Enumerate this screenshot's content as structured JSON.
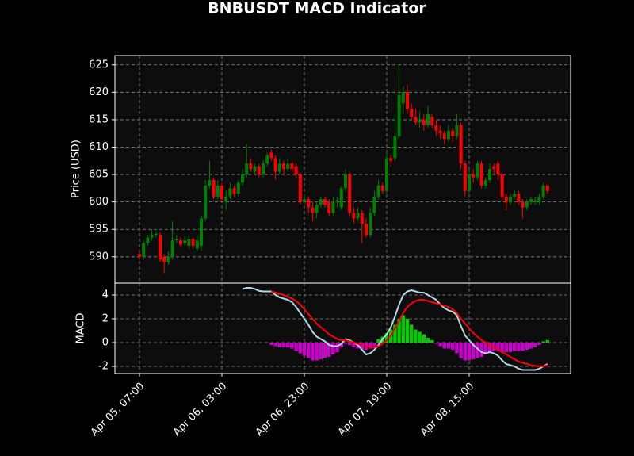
{
  "chart_data": [
    {
      "type": "candlestick",
      "title": "BNBUSDT MACD Indicator",
      "ylabel": "Price (USD)",
      "x": [
        "Apr 05, 07:00",
        "Apr 05, 08:00",
        "Apr 05, 09:00",
        "Apr 05, 10:00",
        "Apr 05, 11:00",
        "Apr 05, 12:00",
        "Apr 05, 13:00",
        "Apr 05, 14:00",
        "Apr 05, 15:00",
        "Apr 05, 16:00",
        "Apr 05, 17:00",
        "Apr 05, 18:00",
        "Apr 05, 19:00",
        "Apr 05, 20:00",
        "Apr 05, 21:00",
        "Apr 05, 22:00",
        "Apr 05, 23:00",
        "Apr 06, 00:00",
        "Apr 06, 01:00",
        "Apr 06, 02:00",
        "Apr 06, 03:00",
        "Apr 06, 04:00",
        "Apr 06, 05:00",
        "Apr 06, 06:00",
        "Apr 06, 07:00",
        "Apr 06, 08:00",
        "Apr 06, 09:00",
        "Apr 06, 10:00",
        "Apr 06, 11:00",
        "Apr 06, 12:00",
        "Apr 06, 13:00",
        "Apr 06, 14:00",
        "Apr 06, 15:00",
        "Apr 06, 16:00",
        "Apr 06, 17:00",
        "Apr 06, 18:00",
        "Apr 06, 19:00",
        "Apr 06, 20:00",
        "Apr 06, 21:00",
        "Apr 06, 22:00",
        "Apr 06, 23:00",
        "Apr 07, 00:00",
        "Apr 07, 01:00",
        "Apr 07, 02:00",
        "Apr 07, 03:00",
        "Apr 07, 04:00",
        "Apr 07, 05:00",
        "Apr 07, 06:00",
        "Apr 07, 07:00",
        "Apr 07, 08:00",
        "Apr 07, 09:00",
        "Apr 07, 10:00",
        "Apr 07, 11:00",
        "Apr 07, 12:00",
        "Apr 07, 13:00",
        "Apr 07, 14:00",
        "Apr 07, 15:00",
        "Apr 07, 16:00",
        "Apr 07, 17:00",
        "Apr 07, 18:00",
        "Apr 07, 19:00",
        "Apr 07, 20:00",
        "Apr 07, 21:00",
        "Apr 07, 22:00",
        "Apr 07, 23:00",
        "Apr 08, 00:00",
        "Apr 08, 01:00",
        "Apr 08, 02:00",
        "Apr 08, 03:00",
        "Apr 08, 04:00",
        "Apr 08, 05:00",
        "Apr 08, 06:00",
        "Apr 08, 07:00",
        "Apr 08, 08:00",
        "Apr 08, 09:00",
        "Apr 08, 10:00",
        "Apr 08, 11:00",
        "Apr 08, 12:00",
        "Apr 08, 13:00",
        "Apr 08, 14:00",
        "Apr 08, 15:00",
        "Apr 08, 16:00",
        "Apr 08, 17:00",
        "Apr 08, 18:00",
        "Apr 08, 19:00",
        "Apr 08, 20:00",
        "Apr 08, 21:00",
        "Apr 08, 22:00",
        "Apr 08, 23:00",
        "Apr 09, 00:00",
        "Apr 09, 01:00",
        "Apr 09, 02:00",
        "Apr 09, 03:00",
        "Apr 09, 04:00",
        "Apr 09, 05:00",
        "Apr 09, 06:00",
        "Apr 09, 07:00",
        "Apr 09, 08:00",
        "Apr 09, 09:00",
        "Apr 09, 10:00"
      ],
      "open": [
        590.5,
        590,
        592.5,
        593.5,
        594,
        594,
        590,
        589,
        590,
        593,
        593,
        592.5,
        592,
        593.2,
        591.5,
        592,
        597,
        603,
        604,
        601,
        603,
        600,
        601,
        602.5,
        601.5,
        603.5,
        605,
        607,
        605.5,
        606.5,
        605,
        607,
        609,
        608,
        605.5,
        607,
        606,
        607,
        606.5,
        605,
        600,
        600.5,
        599,
        598,
        599.5,
        600.5,
        600,
        598,
        600,
        599,
        602.5,
        605,
        598,
        597,
        598,
        596,
        594,
        598,
        601,
        603,
        602,
        608,
        608,
        612,
        618,
        620,
        617,
        615.5,
        614.5,
        615,
        614,
        615.5,
        614,
        613,
        612.5,
        611.5,
        613,
        612,
        614,
        607,
        602,
        605,
        604.5,
        607,
        603,
        604,
        606.5,
        607,
        605,
        601,
        600,
        601,
        601.5,
        600,
        599,
        600,
        600,
        600,
        601,
        603
      ],
      "high": [
        591,
        593,
        594,
        595,
        594.8,
        594.5,
        590.5,
        591,
        596.5,
        594,
        593.5,
        593.8,
        594,
        593.5,
        594,
        597.5,
        604,
        607.5,
        604.5,
        604,
        603.5,
        602,
        603.5,
        603,
        604,
        606,
        610.5,
        608,
        607,
        607,
        607.5,
        609,
        609.5,
        608.5,
        608,
        607.5,
        608,
        607.5,
        607,
        605.5,
        601.5,
        601,
        600,
        600,
        601,
        601,
        600.5,
        601,
        601,
        603,
        606,
        605.5,
        599,
        599,
        598.5,
        597,
        599,
        602,
        604,
        603.5,
        609,
        608.5,
        616,
        625,
        621,
        621.5,
        618,
        617,
        616.5,
        616,
        617.5,
        616,
        615,
        614,
        613,
        614,
        613.5,
        616,
        614.5,
        607.5,
        606,
        606,
        607.5,
        607.5,
        604.5,
        607,
        607,
        607.5,
        605.5,
        601.5,
        601.5,
        602,
        602,
        600.5,
        600.5,
        601,
        601,
        601.5,
        603.5,
        603.2
      ],
      "low": [
        589.5,
        589.5,
        592,
        593,
        593.5,
        589,
        587,
        588.5,
        589.5,
        592.5,
        591.8,
        592,
        591.5,
        591.5,
        591,
        591,
        596.5,
        602.5,
        600.5,
        600.5,
        600,
        598.5,
        600.5,
        601,
        601,
        603,
        604.5,
        605.5,
        605,
        604.5,
        604.5,
        606.5,
        607.5,
        604,
        605,
        605,
        605.5,
        605.5,
        604.5,
        599.5,
        599.5,
        598,
        596.5,
        597,
        599,
        599,
        597.5,
        597.5,
        599,
        598.5,
        602,
        597.5,
        596,
        596.5,
        592.5,
        593.5,
        593.5,
        597.5,
        600.5,
        601.5,
        601.5,
        606.5,
        607.5,
        611.5,
        616,
        616,
        615,
        614,
        613.5,
        613,
        613.5,
        613.5,
        612,
        611.5,
        610.5,
        611,
        611,
        611.5,
        606,
        601,
        601.5,
        603.5,
        604,
        602.5,
        602.5,
        603.5,
        605,
        604,
        600,
        598.5,
        599.5,
        600.5,
        599.5,
        597,
        598.5,
        599.5,
        599.5,
        599.5,
        600.5,
        601.5
      ],
      "close": [
        590,
        592.5,
        593.5,
        594,
        594.2,
        589.5,
        589,
        590,
        593,
        593.3,
        592.2,
        593,
        593.2,
        592,
        593,
        597,
        603,
        604,
        601,
        603,
        600.5,
        601,
        602.5,
        601.5,
        603.5,
        605,
        607,
        606,
        606.5,
        605,
        607,
        608.5,
        608,
        605.5,
        607,
        606,
        607,
        606,
        605,
        600,
        600.5,
        599,
        598,
        599.5,
        600.5,
        599.5,
        598,
        600,
        600.3,
        602.5,
        605,
        598,
        597,
        598,
        596,
        594,
        598,
        601,
        603,
        602,
        608,
        607.5,
        612,
        619.5,
        620,
        617,
        615.5,
        614.5,
        615,
        614,
        616,
        614,
        613,
        612.5,
        611.5,
        613,
        612,
        614,
        607,
        602,
        605,
        604.5,
        607,
        603,
        604,
        606,
        606,
        605,
        601,
        600,
        601,
        601.5,
        600,
        599,
        600,
        600.5,
        600.3,
        601,
        603,
        602
      ],
      "up_color": "#008000",
      "down_color": "#ff0000",
      "ylim": [
        585.2,
        626.7
      ],
      "yticks": [
        590,
        595,
        600,
        605,
        610,
        615,
        620,
        625
      ],
      "grid": true
    },
    {
      "type": "macd",
      "ylabel": "MACD",
      "ylim": [
        -2.6,
        5.0
      ],
      "yticks": [
        -2,
        0,
        2,
        4
      ],
      "grid": true,
      "xticks": [
        "Apr 05, 07:00",
        "Apr 06, 03:00",
        "Apr 06, 23:00",
        "Apr 07, 19:00",
        "Apr 08, 15:00"
      ],
      "series": [
        {
          "kind": "line",
          "color": "#add8e6",
          "values": [
            null,
            null,
            null,
            null,
            null,
            null,
            null,
            null,
            null,
            null,
            null,
            null,
            null,
            null,
            null,
            null,
            null,
            null,
            null,
            null,
            null,
            null,
            null,
            null,
            null,
            4.5,
            4.6,
            4.6,
            4.5,
            4.35,
            4.3,
            4.3,
            4.3,
            4.0,
            3.8,
            3.7,
            3.6,
            3.4,
            3.0,
            2.5,
            2.0,
            1.5,
            0.9,
            0.5,
            0.3,
            0.1,
            -0.2,
            -0.3,
            -0.3,
            -0.1,
            0.3,
            0.2,
            0.0,
            -0.2,
            -0.6,
            -1.0,
            -0.9,
            -0.6,
            -0.2,
            0.3,
            0.7,
            1.3,
            2.2,
            3.2,
            4.0,
            4.3,
            4.4,
            4.3,
            4.2,
            4.2,
            4.0,
            3.8,
            3.6,
            3.2,
            2.9,
            2.7,
            2.6,
            2.3,
            1.4,
            0.6,
            0.2,
            -0.2,
            -0.5,
            -0.8,
            -0.9,
            -0.8,
            -0.9,
            -1.1,
            -1.5,
            -1.8,
            -1.9,
            -2.0,
            -2.2,
            -2.3,
            -2.3,
            -2.3,
            -2.3,
            -2.2,
            -2.0,
            -1.8
          ]
        },
        {
          "kind": "line",
          "color": "#ff0000",
          "values": [
            null,
            null,
            null,
            null,
            null,
            null,
            null,
            null,
            null,
            null,
            null,
            null,
            null,
            null,
            null,
            null,
            null,
            null,
            null,
            null,
            null,
            null,
            null,
            null,
            null,
            null,
            null,
            null,
            null,
            null,
            null,
            null,
            4.3,
            4.2,
            4.1,
            4.0,
            3.85,
            3.7,
            3.5,
            3.2,
            2.8,
            2.4,
            2.0,
            1.6,
            1.3,
            1.0,
            0.7,
            0.5,
            0.3,
            0.2,
            0.2,
            0.1,
            0.0,
            -0.1,
            -0.2,
            -0.3,
            -0.4,
            -0.4,
            -0.3,
            -0.1,
            0.2,
            0.6,
            1.2,
            1.8,
            2.5,
            3.0,
            3.3,
            3.5,
            3.6,
            3.6,
            3.5,
            3.4,
            3.3,
            3.2,
            3.1,
            3.0,
            2.8,
            2.5,
            2.0,
            1.6,
            1.2,
            0.8,
            0.5,
            0.2,
            0.0,
            -0.2,
            -0.4,
            -0.6,
            -0.8,
            -1.0,
            -1.2,
            -1.4,
            -1.6,
            -1.7,
            -1.8,
            -1.9,
            -1.95,
            -2.0,
            -2.0,
            -1.9
          ]
        },
        {
          "kind": "bar",
          "color": "#00cc00",
          "negative_color": "#cc00cc",
          "values": [
            null,
            null,
            null,
            null,
            null,
            null,
            null,
            null,
            null,
            null,
            null,
            null,
            null,
            null,
            null,
            null,
            null,
            null,
            null,
            null,
            null,
            null,
            null,
            null,
            null,
            null,
            null,
            null,
            null,
            null,
            null,
            null,
            -0.2,
            -0.3,
            -0.4,
            -0.4,
            -0.4,
            -0.5,
            -0.7,
            -0.9,
            -1.1,
            -1.3,
            -1.5,
            -1.5,
            -1.4,
            -1.3,
            -1.2,
            -1.0,
            -0.8,
            -0.4,
            -0.1,
            -0.2,
            -0.4,
            -0.5,
            -0.6,
            -0.6,
            -0.5,
            -0.3,
            0.3,
            0.5,
            0.8,
            1.1,
            1.5,
            2.0,
            2.3,
            2.0,
            1.5,
            1.1,
            0.9,
            0.7,
            0.4,
            0.2,
            -0.1,
            -0.3,
            -0.5,
            -0.5,
            -0.6,
            -0.9,
            -1.3,
            -1.5,
            -1.5,
            -1.4,
            -1.3,
            -1.2,
            -1.0,
            -0.8,
            -0.7,
            -0.7,
            -0.8,
            -0.8,
            -0.8,
            -0.7,
            -0.7,
            -0.7,
            -0.6,
            -0.5,
            -0.4,
            -0.2,
            0.1,
            0.2
          ]
        }
      ]
    }
  ]
}
